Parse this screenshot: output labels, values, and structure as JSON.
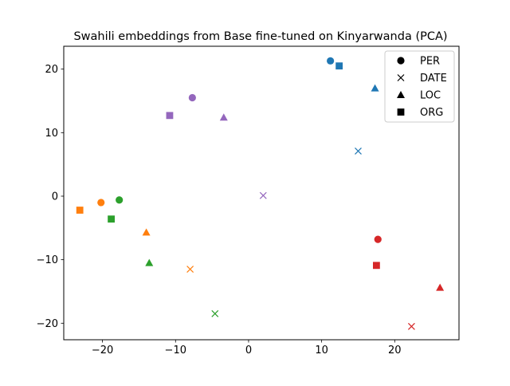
{
  "chart_data": {
    "type": "scatter",
    "title": "Swahili embeddings from Base fine-tuned on Kinyarwanda (PCA)",
    "xlabel": "",
    "ylabel": "",
    "xlim": [
      -25.3,
      28.8
    ],
    "ylim": [
      -22.6,
      23.6
    ],
    "xticks": [
      -20,
      -10,
      0,
      10,
      20
    ],
    "yticks": [
      -20,
      -10,
      0,
      10,
      20
    ],
    "grid": false,
    "legend_position": "top-right",
    "legend": [
      {
        "label": "PER",
        "marker": "circle"
      },
      {
        "label": "DATE",
        "marker": "x"
      },
      {
        "label": "LOC",
        "marker": "triangle"
      },
      {
        "label": "ORG",
        "marker": "square"
      }
    ],
    "points": [
      {
        "x": 11.2,
        "y": 21.3,
        "marker": "circle",
        "color": "#1f77b4"
      },
      {
        "x": 12.4,
        "y": 20.5,
        "marker": "square",
        "color": "#1f77b4"
      },
      {
        "x": 17.3,
        "y": 17.0,
        "marker": "triangle",
        "color": "#1f77b4"
      },
      {
        "x": 15.0,
        "y": 7.1,
        "marker": "x",
        "color": "#1f77b4"
      },
      {
        "x": -7.7,
        "y": 15.5,
        "marker": "circle",
        "color": "#9467bd"
      },
      {
        "x": -10.8,
        "y": 12.7,
        "marker": "square",
        "color": "#9467bd"
      },
      {
        "x": -3.4,
        "y": 12.4,
        "marker": "triangle",
        "color": "#9467bd"
      },
      {
        "x": 2.0,
        "y": 0.1,
        "marker": "x",
        "color": "#9467bd"
      },
      {
        "x": -20.2,
        "y": -1.0,
        "marker": "circle",
        "color": "#ff7f0e"
      },
      {
        "x": -23.1,
        "y": -2.2,
        "marker": "square",
        "color": "#ff7f0e"
      },
      {
        "x": -14.0,
        "y": -5.7,
        "marker": "triangle",
        "color": "#ff7f0e"
      },
      {
        "x": -8.0,
        "y": -11.5,
        "marker": "x",
        "color": "#ff7f0e"
      },
      {
        "x": -17.7,
        "y": -0.6,
        "marker": "circle",
        "color": "#2ca02c"
      },
      {
        "x": -18.8,
        "y": -3.6,
        "marker": "square",
        "color": "#2ca02c"
      },
      {
        "x": -13.6,
        "y": -10.5,
        "marker": "triangle",
        "color": "#2ca02c"
      },
      {
        "x": -4.6,
        "y": -18.5,
        "marker": "x",
        "color": "#2ca02c"
      },
      {
        "x": 17.7,
        "y": -6.8,
        "marker": "circle",
        "color": "#d62728"
      },
      {
        "x": 17.5,
        "y": -10.9,
        "marker": "square",
        "color": "#d62728"
      },
      {
        "x": 26.2,
        "y": -14.4,
        "marker": "triangle",
        "color": "#d62728"
      },
      {
        "x": 22.3,
        "y": -20.5,
        "marker": "x",
        "color": "#d62728"
      }
    ]
  }
}
